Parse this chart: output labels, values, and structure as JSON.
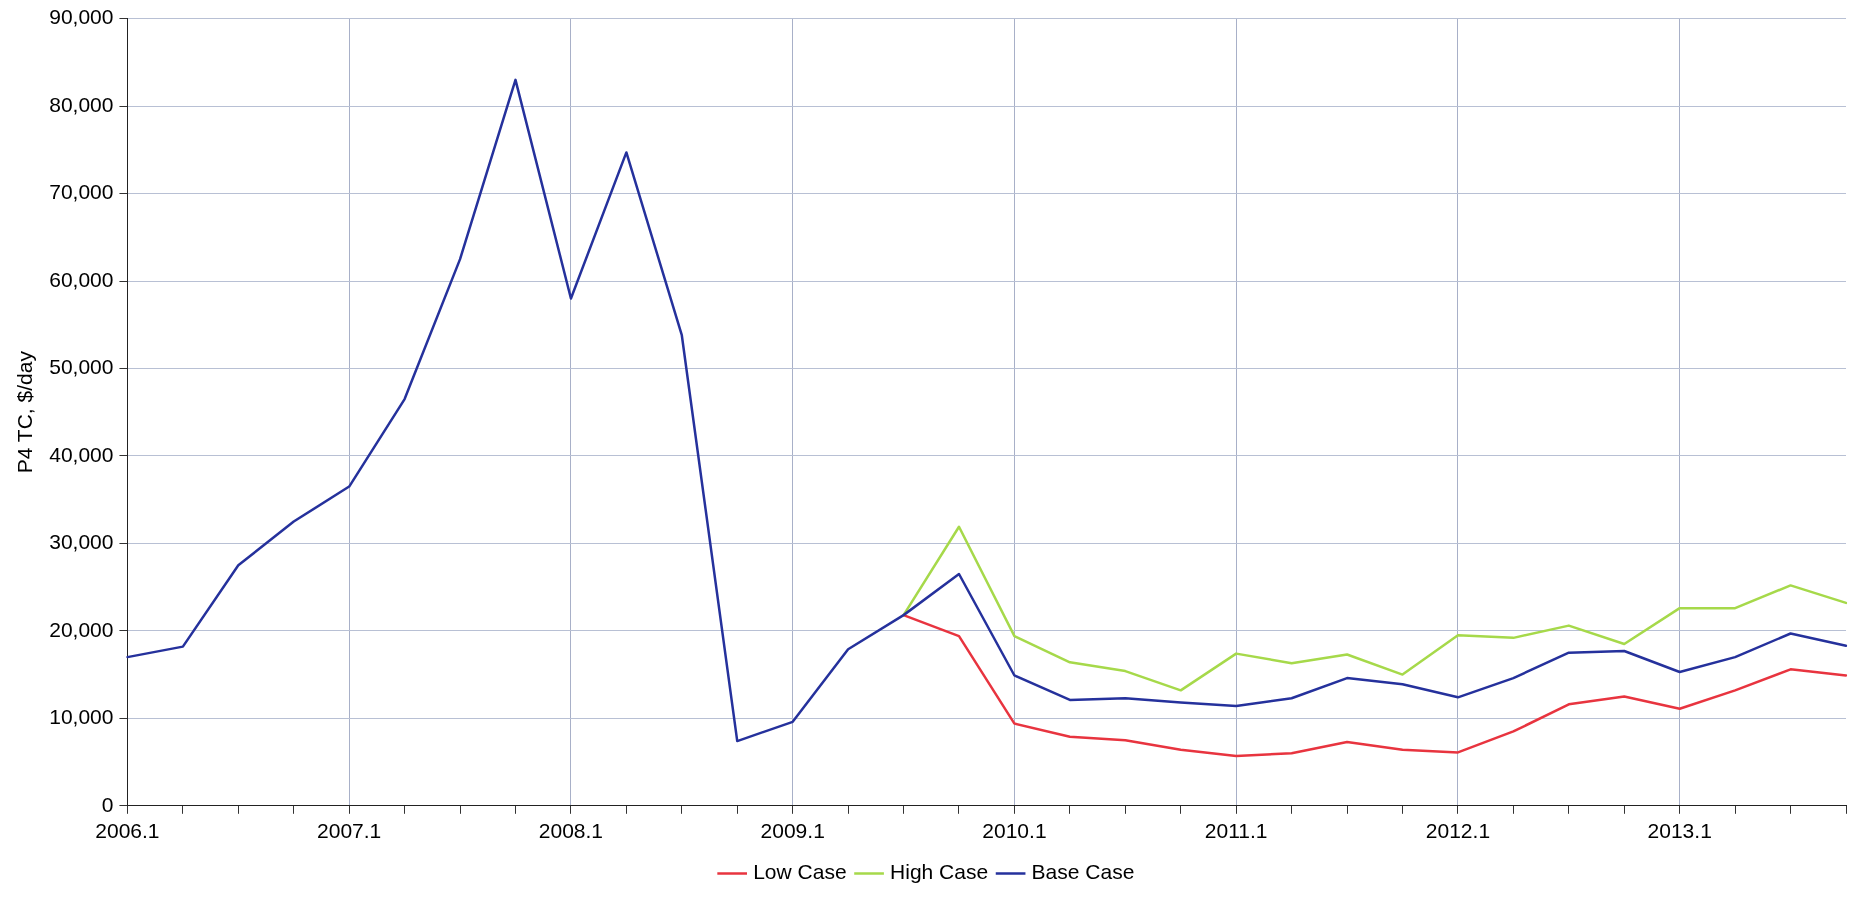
{
  "chart_data": {
    "type": "line",
    "ylabel": "P4 TC, $/day",
    "categories": [
      "2006.1",
      null,
      null,
      null,
      "2007.1",
      null,
      null,
      null,
      "2008.1",
      null,
      null,
      null,
      "2009.1",
      null,
      null,
      null,
      "2010.1",
      null,
      null,
      null,
      "2011.1",
      null,
      null,
      null,
      "2012.1",
      null,
      null,
      null,
      "2013.1",
      null,
      null,
      null
    ],
    "series": [
      {
        "name": "Low Case",
        "color": "#e8343f",
        "values": [
          null,
          null,
          null,
          null,
          null,
          null,
          null,
          null,
          null,
          null,
          null,
          null,
          null,
          null,
          21800,
          19400,
          9400,
          7900,
          7500,
          6400,
          5700,
          6000,
          7300,
          6400,
          6100,
          8500,
          11600,
          12500,
          11100,
          13200,
          15600,
          14900
        ]
      },
      {
        "name": "High Case",
        "color": "#a6d94a",
        "values": [
          null,
          null,
          null,
          null,
          null,
          null,
          null,
          null,
          null,
          null,
          null,
          null,
          null,
          null,
          21800,
          31900,
          19400,
          16400,
          15400,
          13200,
          17400,
          16300,
          17300,
          15000,
          19500,
          19200,
          20600,
          18500,
          22600,
          22600,
          25200,
          23200
        ]
      },
      {
        "name": "Base Case",
        "color": "#25319c",
        "values": [
          17000,
          18200,
          27500,
          32500,
          36500,
          46500,
          62500,
          83000,
          58000,
          74700,
          53800,
          7400,
          9600,
          17900,
          21800,
          26500,
          14900,
          12100,
          12300,
          11800,
          11400,
          12300,
          14600,
          13900,
          12400,
          14600,
          17500,
          17700,
          15300,
          17000,
          19700,
          18300
        ]
      }
    ],
    "ylim": [
      0,
      90000
    ],
    "yticks": [
      0,
      {
        "value": 10000,
        "label": "10,000"
      },
      {
        "value": 20000,
        "label": "20,000"
      },
      {
        "value": 30000,
        "label": "30,000"
      },
      {
        "value": 40000,
        "label": "40,000"
      },
      {
        "value": 50000,
        "label": "50,000"
      },
      {
        "value": 60000,
        "label": "60,000"
      },
      {
        "value": 70000,
        "label": "70,000"
      },
      {
        "value": 80000,
        "label": "80,000"
      },
      {
        "value": 90000,
        "label": "90,000"
      }
    ],
    "grid": true,
    "legend": "bottom",
    "marker": "none",
    "line_style": "solid"
  }
}
